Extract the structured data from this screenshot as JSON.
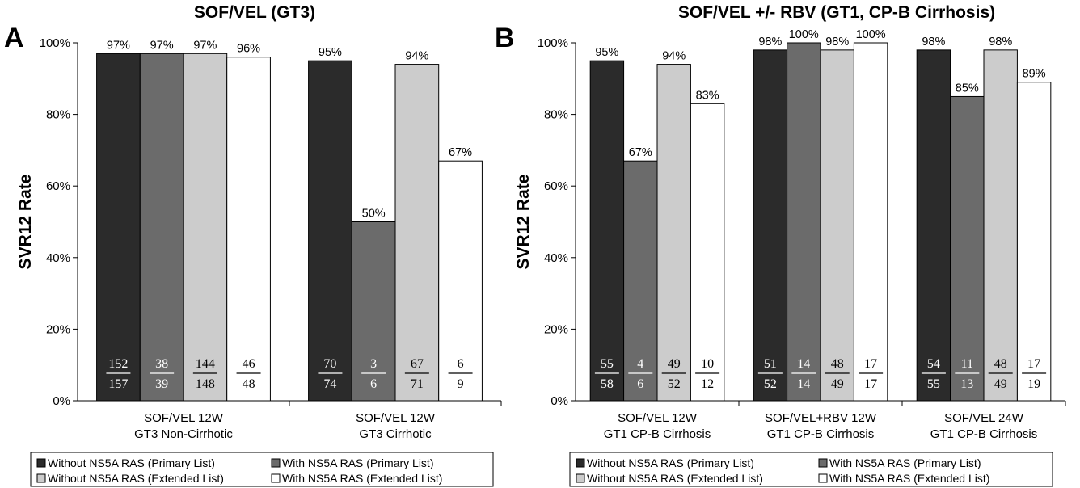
{
  "colors": {
    "series": [
      "#2b2b2b",
      "#6b6b6b",
      "#cccccc",
      "#ffffff"
    ],
    "frac_on_dark": "#ffffff",
    "frac_on_light": "#000000"
  },
  "chart_data": [
    {
      "type": "bar",
      "panel_label": "A",
      "title": "SOF/VEL (GT3)",
      "ylabel": "SVR12 Rate",
      "ylim": [
        0,
        100
      ],
      "yticks": [
        "0%",
        "20%",
        "40%",
        "60%",
        "80%",
        "100%"
      ],
      "categories": [
        [
          "SOF/VEL 12W",
          "GT3 Non-Cirrhotic"
        ],
        [
          "SOF/VEL 12W",
          "GT3 Cirrhotic"
        ]
      ],
      "series": [
        {
          "name": "Without NS5A RAS (Primary List)",
          "values": [
            97,
            95
          ],
          "labels": [
            "97%",
            "95%"
          ],
          "fractions": [
            [
              "152",
              "157"
            ],
            [
              "70",
              "74"
            ]
          ]
        },
        {
          "name": "With NS5A RAS (Primary List)",
          "values": [
            97,
            50
          ],
          "labels": [
            "97%",
            "50%"
          ],
          "fractions": [
            [
              "38",
              "39"
            ],
            [
              "3",
              "6"
            ]
          ]
        },
        {
          "name": "Without NS5A RAS (Extended List)",
          "values": [
            97,
            94
          ],
          "labels": [
            "97%",
            "94%"
          ],
          "fractions": [
            [
              "144",
              "148"
            ],
            [
              "67",
              "71"
            ]
          ]
        },
        {
          "name": "With NS5A RAS (Extended List)",
          "values": [
            96,
            67
          ],
          "labels": [
            "96%",
            "67%"
          ],
          "fractions": [
            [
              "46",
              "48"
            ],
            [
              "6",
              "9"
            ]
          ]
        }
      ],
      "legend_placement": "bottom"
    },
    {
      "type": "bar",
      "panel_label": "B",
      "title": "SOF/VEL +/- RBV (GT1, CP-B Cirrhosis)",
      "ylabel": "SVR12 Rate",
      "ylim": [
        0,
        100
      ],
      "yticks": [
        "0%",
        "20%",
        "40%",
        "60%",
        "80%",
        "100%"
      ],
      "categories": [
        [
          "SOF/VEL 12W",
          "GT1 CP-B Cirrhosis"
        ],
        [
          "SOF/VEL+RBV 12W",
          "GT1 CP-B Cirrhosis"
        ],
        [
          "SOF/VEL 24W",
          "GT1 CP-B Cirrhosis"
        ]
      ],
      "series": [
        {
          "name": "Without NS5A RAS (Primary List)",
          "values": [
            95,
            98,
            98
          ],
          "labels": [
            "95%",
            "98%",
            "98%"
          ],
          "fractions": [
            [
              "55",
              "58"
            ],
            [
              "51",
              "52"
            ],
            [
              "54",
              "55"
            ]
          ]
        },
        {
          "name": "With NS5A RAS (Primary List)",
          "values": [
            67,
            100,
            85
          ],
          "labels": [
            "67%",
            "100%",
            "85%"
          ],
          "fractions": [
            [
              "4",
              "6"
            ],
            [
              "14",
              "14"
            ],
            [
              "11",
              "13"
            ]
          ]
        },
        {
          "name": "Without NS5A RAS (Extended List)",
          "values": [
            94,
            98,
            98
          ],
          "labels": [
            "94%",
            "98%",
            "98%"
          ],
          "fractions": [
            [
              "49",
              "52"
            ],
            [
              "48",
              "49"
            ],
            [
              "48",
              "49"
            ]
          ]
        },
        {
          "name": "With NS5A RAS (Extended List)",
          "values": [
            83,
            100,
            89
          ],
          "labels": [
            "83%",
            "100%",
            "89%"
          ],
          "fractions": [
            [
              "10",
              "12"
            ],
            [
              "17",
              "17"
            ],
            [
              "17",
              "19"
            ]
          ]
        }
      ],
      "legend_placement": "bottom"
    }
  ]
}
